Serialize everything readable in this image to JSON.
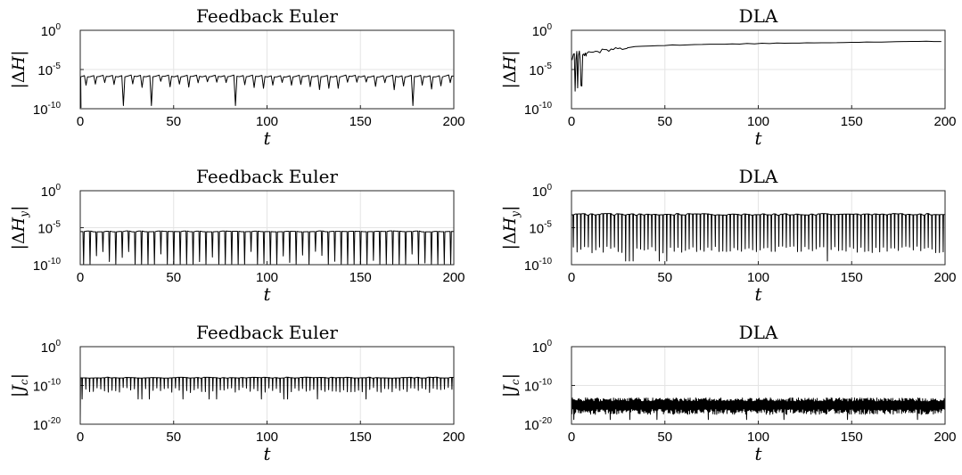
{
  "chart_data": [
    {
      "type": "line",
      "title": "Feedback Euler",
      "xlabel": "t",
      "ylabel": "|ΔH|",
      "yscale": "log",
      "xlim": [
        0,
        200
      ],
      "ylim_exp": [
        -10,
        0
      ],
      "xticks": [
        "0",
        "50",
        "100",
        "150",
        "200"
      ],
      "yticks_exp": [
        "0",
        "-5",
        "-10"
      ],
      "grid": true,
      "pattern": {
        "kind": "dips",
        "base_exp": -5.9,
        "n": 40,
        "dip_exp": [
          -6.5,
          -9.6
        ],
        "start": [
          0.4,
          -9.9
        ]
      }
    },
    {
      "type": "line",
      "title": "DLA",
      "xlabel": "t",
      "ylabel": "|ΔH|",
      "yscale": "log",
      "xlim": [
        0,
        200
      ],
      "ylim_exp": [
        -10,
        0
      ],
      "xticks": [
        "0",
        "50",
        "100",
        "150",
        "200"
      ],
      "yticks_exp": [
        "0",
        "-5",
        "-10"
      ],
      "grid": true,
      "pattern": {
        "kind": "growth",
        "from_exp": -3.8,
        "to_exp": -1.4,
        "x_drop_exp": -8.5
      }
    },
    {
      "type": "line",
      "title": "Feedback Euler",
      "xlabel": "t",
      "ylabel": "|ΔH_y|",
      "yscale": "log",
      "xlim": [
        0,
        200
      ],
      "ylim_exp": [
        -10,
        0
      ],
      "xticks": [
        "0",
        "50",
        "100",
        "150",
        "200"
      ],
      "yticks_exp": [
        "0",
        "-5",
        "-10"
      ],
      "grid": true,
      "pattern": {
        "kind": "deep_dips",
        "base_exp": -5.5,
        "n": 58,
        "dip_exp": -10
      }
    },
    {
      "type": "line",
      "title": "DLA",
      "xlabel": "t",
      "ylabel": "|ΔH_y|",
      "yscale": "log",
      "xlim": [
        0,
        200
      ],
      "ylim_exp": [
        -10,
        0
      ],
      "xticks": [
        "0",
        "50",
        "100",
        "150",
        "200"
      ],
      "yticks_exp": [
        "0",
        "-5",
        "-10"
      ],
      "grid": true,
      "pattern": {
        "kind": "comb",
        "base_exp": -3.2,
        "n": 100,
        "dip_exp": [
          -7.5,
          -9.5
        ]
      }
    },
    {
      "type": "line",
      "title": "Feedback Euler",
      "xlabel": "t",
      "ylabel": "|J_c|",
      "yscale": "log",
      "xlim": [
        0,
        200
      ],
      "ylim_exp": [
        -20,
        0
      ],
      "xticks": [
        "0",
        "50",
        "100",
        "150",
        "200"
      ],
      "yticks_exp": [
        "0",
        "-10",
        "-20"
      ],
      "grid": true,
      "pattern": {
        "kind": "comb",
        "base_exp": -8.0,
        "n": 100,
        "dip_exp": [
          -10.5,
          -13.5
        ],
        "start": [
          0.0,
          -20
        ]
      }
    },
    {
      "type": "line",
      "title": "DLA",
      "xlabel": "t",
      "ylabel": "|J_c|",
      "yscale": "log",
      "xlim": [
        0,
        200
      ],
      "ylim_exp": [
        -20,
        0
      ],
      "xticks": [
        "0",
        "50",
        "100",
        "150",
        "200"
      ],
      "yticks_exp": [
        "0",
        "-10",
        "-20"
      ],
      "grid": true,
      "pattern": {
        "kind": "noise",
        "hi_exp": [
          -13.2,
          -14.2
        ],
        "lo_exp": [
          -16.0,
          -17.5
        ],
        "spike_exp": -18.8
      }
    }
  ]
}
